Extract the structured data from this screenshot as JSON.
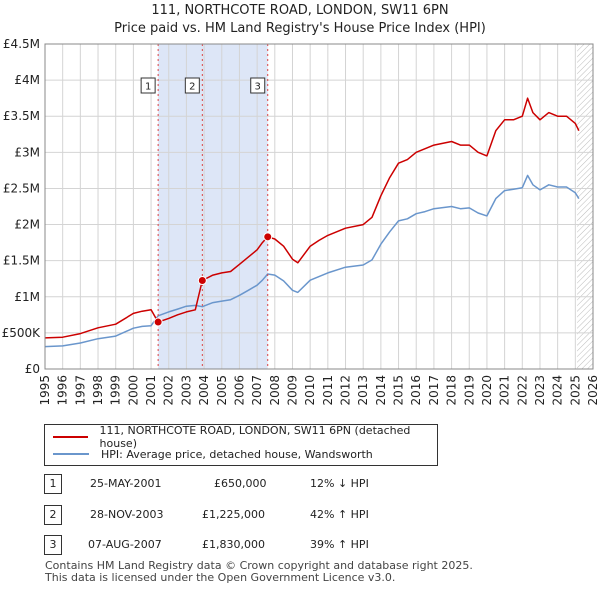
{
  "header": {
    "title": "111, NORTHCOTE ROAD, LONDON, SW11 6PN",
    "subtitle": "Price paid vs. HM Land Registry's House Price Index (HPI)"
  },
  "colors": {
    "property": "#cc0000",
    "hpi": "#6a96cc",
    "shade": "#dde6f7",
    "vline": "#dd4444"
  },
  "chart_data": {
    "type": "line",
    "xlim": [
      1995,
      2026
    ],
    "ylim": [
      0,
      4500000
    ],
    "y_ticks": [
      {
        "value": 0,
        "label": "£0"
      },
      {
        "value": 500000,
        "label": "£500K"
      },
      {
        "value": 1000000,
        "label": "£1M"
      },
      {
        "value": 1500000,
        "label": "£1.5M"
      },
      {
        "value": 2000000,
        "label": "£2M"
      },
      {
        "value": 2500000,
        "label": "£2.5M"
      },
      {
        "value": 3000000,
        "label": "£3M"
      },
      {
        "value": 3500000,
        "label": "£3.5M"
      },
      {
        "value": 4000000,
        "label": "£4M"
      },
      {
        "value": 4500000,
        "label": "£4.5M"
      }
    ],
    "x_ticks": [
      "1995",
      "1996",
      "1997",
      "1998",
      "1999",
      "2000",
      "2001",
      "2002",
      "2003",
      "2004",
      "2005",
      "2006",
      "2007",
      "2008",
      "2009",
      "2010",
      "2011",
      "2012",
      "2013",
      "2014",
      "2015",
      "2016",
      "2017",
      "2018",
      "2019",
      "2020",
      "2021",
      "2022",
      "2023",
      "2024",
      "2025",
      "2026"
    ],
    "shaded_period": [
      2001.4,
      2007.6
    ],
    "future_hatch_from": 2025.1,
    "series": [
      {
        "name": "111, NORTHCOTE ROAD, LONDON, SW11 6PN (detached house)",
        "x": [
          1995,
          1996,
          1997,
          1998,
          1999,
          2000,
          2000.5,
          2001,
          2001.4,
          2002,
          2002.5,
          2003,
          2003.5,
          2003.9,
          2004.5,
          2005,
          2005.5,
          2006,
          2006.5,
          2007,
          2007.3,
          2007.6,
          2008,
          2008.5,
          2009,
          2009.3,
          2010,
          2010.5,
          2011,
          2012,
          2013,
          2013.5,
          2014,
          2014.5,
          2015,
          2015.5,
          2016,
          2016.5,
          2017,
          2018,
          2018.5,
          2019,
          2019.5,
          2020,
          2020.5,
          2021,
          2021.5,
          2022,
          2022.3,
          2022.6,
          2023,
          2023.5,
          2024,
          2024.5,
          2025,
          2025.2
        ],
        "values": [
          430000,
          440000,
          490000,
          570000,
          620000,
          770000,
          800000,
          820000,
          650000,
          700000,
          750000,
          790000,
          820000,
          1225000,
          1300000,
          1330000,
          1350000,
          1450000,
          1550000,
          1650000,
          1750000,
          1830000,
          1800000,
          1700000,
          1520000,
          1470000,
          1700000,
          1780000,
          1850000,
          1950000,
          2000000,
          2100000,
          2400000,
          2650000,
          2850000,
          2900000,
          3000000,
          3050000,
          3100000,
          3150000,
          3100000,
          3100000,
          3000000,
          2950000,
          3300000,
          3450000,
          3450000,
          3500000,
          3750000,
          3550000,
          3450000,
          3550000,
          3500000,
          3500000,
          3400000,
          3300000
        ]
      },
      {
        "name": "HPI: Average price, detached house, Wandsworth",
        "x": [
          1995,
          1996,
          1997,
          1998,
          1999,
          2000,
          2000.5,
          2001,
          2001.4,
          2002,
          2002.5,
          2003,
          2003.5,
          2003.9,
          2004.5,
          2005,
          2005.5,
          2006,
          2006.5,
          2007,
          2007.3,
          2007.6,
          2008,
          2008.5,
          2009,
          2009.3,
          2010,
          2010.5,
          2011,
          2012,
          2013,
          2013.5,
          2014,
          2014.5,
          2015,
          2015.5,
          2016,
          2016.5,
          2017,
          2018,
          2018.5,
          2019,
          2019.5,
          2020,
          2020.5,
          2021,
          2021.5,
          2022,
          2022.3,
          2022.6,
          2023,
          2023.5,
          2024,
          2024.5,
          2025,
          2025.2
        ],
        "values": [
          310000,
          320000,
          360000,
          420000,
          455000,
          565000,
          590000,
          600000,
          737000,
          790000,
          830000,
          870000,
          880000,
          862000,
          920000,
          940000,
          960000,
          1020000,
          1090000,
          1160000,
          1230000,
          1316000,
          1300000,
          1220000,
          1090000,
          1060000,
          1230000,
          1280000,
          1330000,
          1410000,
          1440000,
          1510000,
          1730000,
          1900000,
          2050000,
          2080000,
          2150000,
          2180000,
          2220000,
          2250000,
          2220000,
          2230000,
          2160000,
          2120000,
          2360000,
          2470000,
          2490000,
          2510000,
          2680000,
          2550000,
          2480000,
          2550000,
          2520000,
          2520000,
          2440000,
          2360000
        ]
      }
    ],
    "markers": [
      {
        "label": "1",
        "x": 2001.4,
        "price": 650000
      },
      {
        "label": "2",
        "x": 2003.9,
        "price": 1225000
      },
      {
        "label": "3",
        "x": 2007.6,
        "price": 1830000
      }
    ]
  },
  "legend": {
    "items": [
      "111, NORTHCOTE ROAD, LONDON, SW11 6PN (detached house)",
      "HPI: Average price, detached house, Wandsworth"
    ]
  },
  "transactions": [
    {
      "num": "1",
      "date": "25-MAY-2001",
      "price": "£650,000",
      "hpi": "12% ↓ HPI"
    },
    {
      "num": "2",
      "date": "28-NOV-2003",
      "price": "£1,225,000",
      "hpi": "42% ↑ HPI"
    },
    {
      "num": "3",
      "date": "07-AUG-2007",
      "price": "£1,830,000",
      "hpi": "39% ↑ HPI"
    }
  ],
  "footer": {
    "line1": "Contains HM Land Registry data © Crown copyright and database right 2025.",
    "line2": "This data is licensed under the Open Government Licence v3.0."
  }
}
